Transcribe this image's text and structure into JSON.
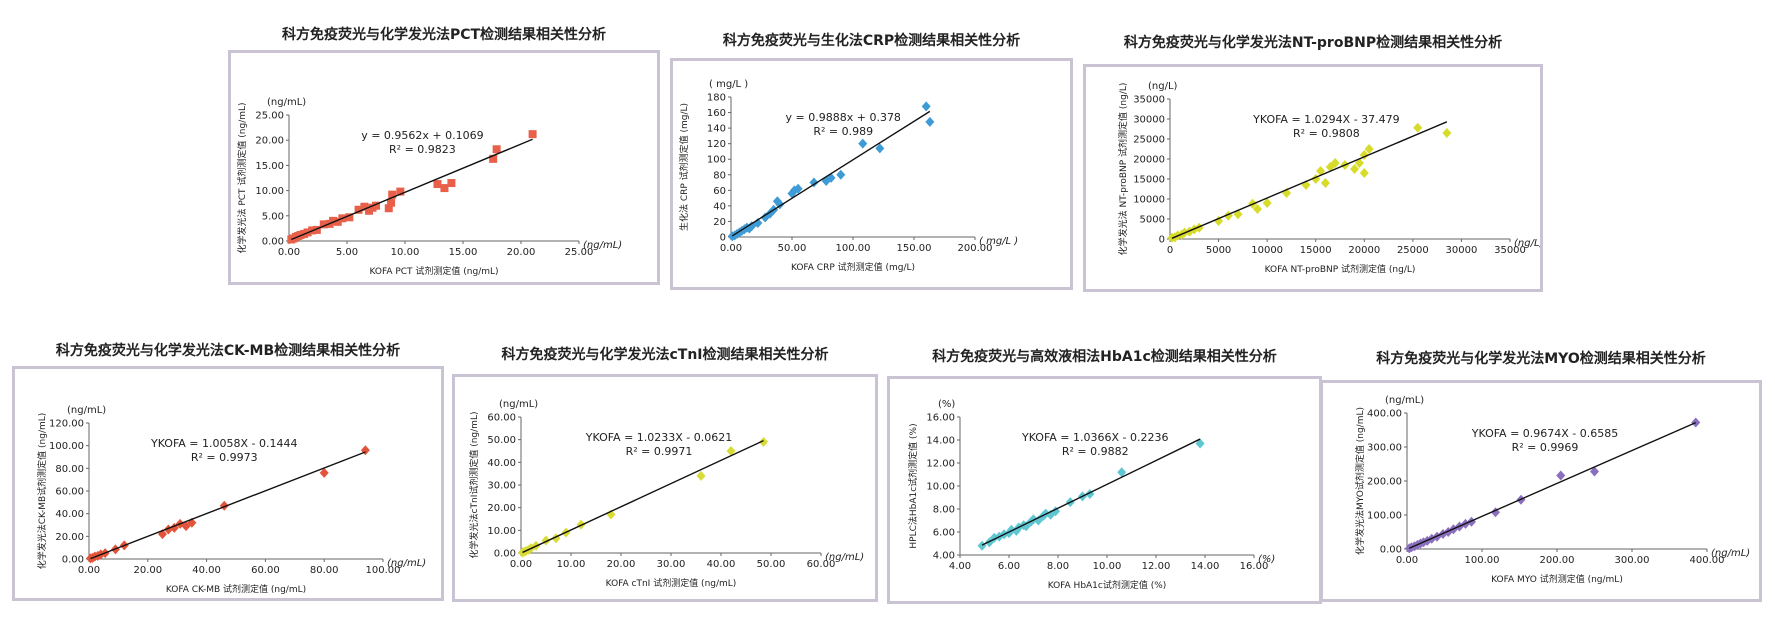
{
  "chart_data": [
    {
      "type": "scatter",
      "title": "科方免疫荧光与化学发光法PCT检测结果相关性分析",
      "xlabel": "KOFA PCT 试剂测定值 (ng/mL)",
      "ylabel": "化学发光法 PCT 试剂测定值 (ng/mL)",
      "y_unit": "(ng/mL)",
      "x_unit": "(ng/mL)",
      "xlim": [
        0,
        25
      ],
      "ylim": [
        0,
        25
      ],
      "xticks": [
        "0.00",
        "5.00",
        "10.00",
        "15.00",
        "20.00",
        "25.00"
      ],
      "yticks": [
        "0.00",
        "5.00",
        "10.00",
        "15.00",
        "20.00",
        "25.00"
      ],
      "marker": "square",
      "color": "#e8604a",
      "equation": "y = 0.9562x + 0.1069",
      "r2": "R² = 0.9823",
      "trendline": {
        "slope": 0.9562,
        "intercept": 0.1069
      },
      "points": [
        [
          0.2,
          0.3
        ],
        [
          0.4,
          0.5
        ],
        [
          0.6,
          0.8
        ],
        [
          0.8,
          1.0
        ],
        [
          1.0,
          1.2
        ],
        [
          1.3,
          1.4
        ],
        [
          1.6,
          1.7
        ],
        [
          2.0,
          2.1
        ],
        [
          2.4,
          2.2
        ],
        [
          3.0,
          3.3
        ],
        [
          3.5,
          3.4
        ],
        [
          3.8,
          4.0
        ],
        [
          4.2,
          3.8
        ],
        [
          4.6,
          4.5
        ],
        [
          5.2,
          4.7
        ],
        [
          6.0,
          6.2
        ],
        [
          6.5,
          6.8
        ],
        [
          6.9,
          6.0
        ],
        [
          7.2,
          6.6
        ],
        [
          7.5,
          7.0
        ],
        [
          8.6,
          6.5
        ],
        [
          8.8,
          7.6
        ],
        [
          8.9,
          9.2
        ],
        [
          9.6,
          9.8
        ],
        [
          12.8,
          11.3
        ],
        [
          13.4,
          10.5
        ],
        [
          14.0,
          11.5
        ],
        [
          17.6,
          16.3
        ],
        [
          17.9,
          18.2
        ],
        [
          21.0,
          21.2
        ]
      ]
    },
    {
      "type": "scatter",
      "title": "科方免疫荧光与生化法CRP检测结果相关性分析",
      "xlabel": "KOFA CRP 试剂测定值 (mg/L)",
      "ylabel": "生化法 CRP 试剂测定值 (mg/L)",
      "y_unit": "( mg/L )",
      "x_unit": "( mg/L )",
      "xlim": [
        0,
        200
      ],
      "ylim": [
        0,
        180
      ],
      "xticks": [
        "0.00",
        "50.00",
        "100.00",
        "150.00",
        "200.00"
      ],
      "yticks": [
        "0",
        "20",
        "40",
        "60",
        "80",
        "100",
        "120",
        "140",
        "160",
        "180"
      ],
      "marker": "diamond",
      "color": "#3f9bd6",
      "equation": "y = 0.9888x + 0.378",
      "r2": "R² = 0.989",
      "trendline": {
        "slope": 0.9888,
        "intercept": 0.378
      },
      "points": [
        [
          1,
          1
        ],
        [
          3,
          2
        ],
        [
          5,
          4
        ],
        [
          7,
          6
        ],
        [
          9,
          8
        ],
        [
          11,
          10
        ],
        [
          13,
          12
        ],
        [
          15,
          11
        ],
        [
          17,
          14
        ],
        [
          22,
          18
        ],
        [
          28,
          25
        ],
        [
          32,
          30
        ],
        [
          35,
          35
        ],
        [
          38,
          46
        ],
        [
          40,
          42
        ],
        [
          50,
          56
        ],
        [
          52,
          60
        ],
        [
          55,
          62
        ],
        [
          68,
          70
        ],
        [
          78,
          72
        ],
        [
          82,
          76
        ],
        [
          90,
          80
        ],
        [
          108,
          120
        ],
        [
          122,
          114
        ],
        [
          160,
          168
        ],
        [
          163,
          148
        ]
      ]
    },
    {
      "type": "scatter",
      "title": "科方免疫荧光与化学发光法NT-proBNP检测结果相关性分析",
      "xlabel": "KOFA NT-proBNP 试剂测定值 (ng/L)",
      "ylabel": "化学发光法 NT-proBNP 试剂测定值 (ng/L)",
      "y_unit": "(ng/L)",
      "x_unit": "(ng/L)",
      "xlim": [
        0,
        35000
      ],
      "ylim": [
        0,
        35000
      ],
      "xticks": [
        "0",
        "5000",
        "10000",
        "15000",
        "20000",
        "25000",
        "30000",
        "35000"
      ],
      "yticks": [
        "0",
        "5000",
        "10000",
        "15000",
        "20000",
        "25000",
        "30000",
        "35000"
      ],
      "marker": "diamond",
      "color": "#d7dc2b",
      "equation": "YKOFA = 1.0294X - 37.479",
      "r2": "R² = 0.9808",
      "trendline": {
        "slope": 1.0294,
        "intercept": -37.479
      },
      "points": [
        [
          200,
          300
        ],
        [
          500,
          400
        ],
        [
          800,
          900
        ],
        [
          1200,
          1100
        ],
        [
          1500,
          1600
        ],
        [
          2000,
          1800
        ],
        [
          2500,
          2400
        ],
        [
          3000,
          2800
        ],
        [
          5000,
          4500
        ],
        [
          6000,
          5800
        ],
        [
          7000,
          6200
        ],
        [
          8500,
          8800
        ],
        [
          9000,
          7500
        ],
        [
          10000,
          9000
        ],
        [
          12000,
          11500
        ],
        [
          14000,
          13500
        ],
        [
          15000,
          15000
        ],
        [
          15500,
          17000
        ],
        [
          16000,
          14000
        ],
        [
          16500,
          18000
        ],
        [
          17000,
          19000
        ],
        [
          18000,
          18500
        ],
        [
          19000,
          17500
        ],
        [
          19500,
          19000
        ],
        [
          20000,
          21000
        ],
        [
          20000,
          16500
        ],
        [
          20500,
          22500
        ],
        [
          25500,
          27800
        ],
        [
          28500,
          26500
        ]
      ]
    },
    {
      "type": "scatter",
      "title": "科方免疫荧光与化学发光法CK-MB检测结果相关性分析",
      "xlabel": "KOFA CK-MB 试剂测定值 (ng/mL)",
      "ylabel": "化学发光法CK-MB试剂测定值 (ng/mL)",
      "y_unit": "(ng/mL)",
      "x_unit": "(ng/mL)",
      "xlim": [
        0,
        100
      ],
      "ylim": [
        0,
        120
      ],
      "xticks": [
        "0.00",
        "20.00",
        "40.00",
        "60.00",
        "80.00",
        "100.00"
      ],
      "yticks": [
        "0.00",
        "20.00",
        "40.00",
        "60.00",
        "80.00",
        "100.00",
        "120.00"
      ],
      "marker": "diamond",
      "color": "#e2543a",
      "equation": "YKOFA = 1.0058X - 0.1444",
      "r2": "R² = 0.9973",
      "trendline": {
        "slope": 1.0058,
        "intercept": -0.1444
      },
      "points": [
        [
          0.5,
          0.6
        ],
        [
          1.2,
          1.0
        ],
        [
          2.0,
          2.2
        ],
        [
          3.0,
          2.8
        ],
        [
          4.0,
          4.1
        ],
        [
          5.5,
          5.2
        ],
        [
          9.0,
          8.5
        ],
        [
          12.0,
          12.0
        ],
        [
          25.0,
          22.0
        ],
        [
          27.0,
          26.0
        ],
        [
          29.0,
          27.5
        ],
        [
          31.0,
          31.0
        ],
        [
          33.0,
          29.0
        ],
        [
          35.0,
          32.0
        ],
        [
          46.0,
          47.0
        ],
        [
          80.0,
          76.0
        ],
        [
          94.0,
          96.0
        ]
      ]
    },
    {
      "type": "scatter",
      "title": "科方免疫荧光与化学发光法cTnI检测结果相关性分析",
      "xlabel": "KOFA cTnI 试剂测定值 (ng/mL)",
      "ylabel": "化学发光法cTnI试剂测定值 (ng/mL)",
      "y_unit": "(ng/mL)",
      "x_unit": "(ng/mL)",
      "xlim": [
        0,
        60
      ],
      "ylim": [
        0,
        60
      ],
      "xticks": [
        "0.00",
        "10.00",
        "20.00",
        "30.00",
        "40.00",
        "50.00",
        "60.00"
      ],
      "yticks": [
        "0.00",
        "10.00",
        "20.00",
        "30.00",
        "40.00",
        "50.00",
        "60.00"
      ],
      "marker": "diamond",
      "color": "#d9dc36",
      "equation": "YKOFA = 1.0233X - 0.0621",
      "r2": "R² = 0.9971",
      "trendline": {
        "slope": 1.0233,
        "intercept": -0.0621
      },
      "points": [
        [
          0.3,
          0.2
        ],
        [
          0.6,
          0.5
        ],
        [
          1.0,
          0.9
        ],
        [
          1.5,
          1.4
        ],
        [
          2.0,
          2.1
        ],
        [
          3.0,
          3.2
        ],
        [
          5.0,
          5.5
        ],
        [
          7.0,
          6.5
        ],
        [
          9.0,
          9.0
        ],
        [
          12.0,
          12.5
        ],
        [
          18.0,
          17.0
        ],
        [
          36.0,
          34.0
        ],
        [
          42.0,
          45.0
        ],
        [
          48.5,
          49.0
        ]
      ]
    },
    {
      "type": "scatter",
      "title": "科方免疫荧光与高效液相法HbA1c检测结果相关性分析",
      "xlabel": "KOFA HbA1c试剂测定值 (%)",
      "ylabel": "HPLC法HbA1c试剂测定值 (%)",
      "y_unit": "(%)",
      "x_unit": "(%)",
      "xlim": [
        4,
        16
      ],
      "ylim": [
        4,
        16
      ],
      "xticks": [
        "4.00",
        "6.00",
        "8.00",
        "10.00",
        "12.00",
        "14.00",
        "16.00"
      ],
      "yticks": [
        "4.00",
        "6.00",
        "8.00",
        "10.00",
        "12.00",
        "14.00",
        "16.00"
      ],
      "marker": "diamond",
      "color": "#5ec7d2",
      "equation": "YKOFA = 1.0366X - 0.2236",
      "r2": "R² = 0.9882",
      "trendline": {
        "slope": 1.0366,
        "intercept": -0.2236
      },
      "points": [
        [
          4.9,
          4.8
        ],
        [
          5.2,
          5.1
        ],
        [
          5.4,
          5.5
        ],
        [
          5.6,
          5.6
        ],
        [
          5.8,
          5.8
        ],
        [
          6.0,
          5.9
        ],
        [
          6.1,
          6.2
        ],
        [
          6.3,
          6.1
        ],
        [
          6.4,
          6.4
        ],
        [
          6.6,
          6.6
        ],
        [
          6.7,
          6.5
        ],
        [
          6.9,
          6.9
        ],
        [
          7.0,
          7.1
        ],
        [
          7.2,
          7.0
        ],
        [
          7.4,
          7.4
        ],
        [
          7.5,
          7.6
        ],
        [
          7.7,
          7.5
        ],
        [
          7.9,
          7.8
        ],
        [
          8.5,
          8.6
        ],
        [
          9.0,
          9.1
        ],
        [
          9.3,
          9.3
        ],
        [
          10.6,
          11.2
        ],
        [
          13.8,
          13.7
        ]
      ]
    },
    {
      "type": "scatter",
      "title": "科方免疫荧光与化学发光法MYO检测结果相关性分析",
      "xlabel": "KOFA MYO 试剂测定值 (ng/mL)",
      "ylabel": "化学发光法MYO试剂测定值 (ng/mL)",
      "y_unit": "(ng/mL)",
      "x_unit": "(ng/mL)",
      "xlim": [
        0,
        400
      ],
      "ylim": [
        0,
        400
      ],
      "xticks": [
        "0.00",
        "100.00",
        "200.00",
        "300.00",
        "400.00"
      ],
      "yticks": [
        "0.00",
        "100.00",
        "200.00",
        "300.00",
        "400.00"
      ],
      "marker": "diamond",
      "color": "#8a6fbe",
      "equation": "YKOFA = 0.9674X - 0.6585",
      "r2": "R² = 0.9969",
      "trendline": {
        "slope": 0.9674,
        "intercept": -0.6585
      },
      "points": [
        [
          3,
          2
        ],
        [
          6,
          5
        ],
        [
          10,
          8
        ],
        [
          14,
          12
        ],
        [
          18,
          16
        ],
        [
          22,
          20
        ],
        [
          27,
          24
        ],
        [
          33,
          30
        ],
        [
          40,
          36
        ],
        [
          48,
          44
        ],
        [
          55,
          50
        ],
        [
          62,
          58
        ],
        [
          70,
          66
        ],
        [
          78,
          74
        ],
        [
          86,
          80
        ],
        [
          118,
          108
        ],
        [
          152,
          145
        ],
        [
          205,
          216
        ],
        [
          250,
          228
        ],
        [
          385,
          372
        ]
      ]
    }
  ]
}
